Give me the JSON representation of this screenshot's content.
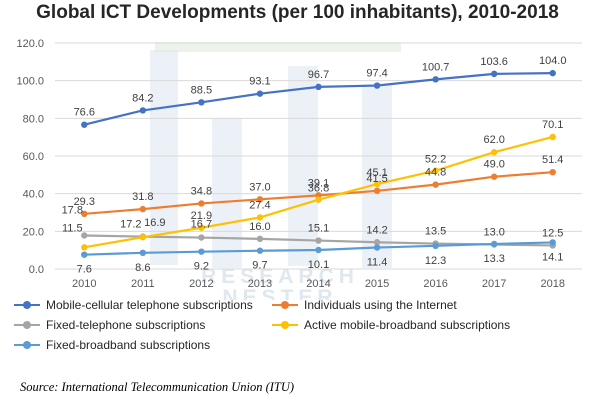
{
  "chart_data": {
    "type": "line",
    "title": "Global ICT Developments (per 100 inhabitants), 2010-2018",
    "x": [
      "2010",
      "2011",
      "2012",
      "2013",
      "2014",
      "2015",
      "2016",
      "2017",
      "2018"
    ],
    "ylim": [
      0,
      120
    ],
    "yticks": [
      "0.0",
      "20.0",
      "40.0",
      "60.0",
      "80.0",
      "100.0",
      "120.0"
    ],
    "grid": true,
    "legend_position": "bottom",
    "series": [
      {
        "name": "Mobile-cellular telephone subscriptions",
        "color": "#4472C4",
        "values": [
          76.6,
          84.2,
          88.5,
          93.1,
          96.7,
          97.4,
          100.7,
          103.6,
          104.0
        ],
        "labels": [
          "76.6",
          "84.2",
          "88.5",
          "93.1",
          "96.7",
          "97.4",
          "100.7",
          "103.6",
          "104.0"
        ]
      },
      {
        "name": "Individuals using the Internet",
        "color": "#ED7D31",
        "values": [
          29.3,
          31.8,
          34.8,
          37.0,
          39.1,
          41.5,
          44.8,
          49.0,
          51.4
        ],
        "labels": [
          "29.3",
          "31.8",
          "34.8",
          "37.0",
          "39.1",
          "41.5",
          "44.8",
          "49.0",
          "51.4"
        ]
      },
      {
        "name": "Fixed-telephone subscriptions",
        "color": "#A5A5A5",
        "values": [
          17.8,
          17.2,
          16.7,
          16.0,
          15.1,
          14.2,
          13.5,
          13.0,
          12.5
        ],
        "labels": [
          "17.8",
          "17.2",
          "16.7",
          "16.0",
          "15.1",
          "14.2",
          "13.5",
          "13.0",
          "12.5"
        ]
      },
      {
        "name": "Active mobile-broadband subscriptions",
        "color": "#FFC000",
        "values": [
          11.5,
          16.9,
          21.9,
          27.4,
          36.8,
          45.1,
          52.2,
          62.0,
          70.1
        ],
        "labels": [
          "11.5",
          "16.9",
          "21.9",
          "27.4",
          "36.8",
          "45.1",
          "52.2",
          "62.0",
          "70.1"
        ]
      },
      {
        "name": "Fixed-broadband subscriptions",
        "color": "#5B9BD5",
        "values": [
          7.6,
          8.6,
          9.2,
          9.7,
          10.1,
          11.4,
          12.3,
          13.3,
          14.1
        ],
        "labels": [
          "7.6",
          "8.6",
          "9.2",
          "9.7",
          "10.1",
          "11.4",
          "12.3",
          "13.3",
          "14.1"
        ]
      }
    ]
  },
  "watermark": {
    "line1": "RESEARCH",
    "line2": "NESTER"
  },
  "source": "Source: International Telecommunication Union (ITU)"
}
